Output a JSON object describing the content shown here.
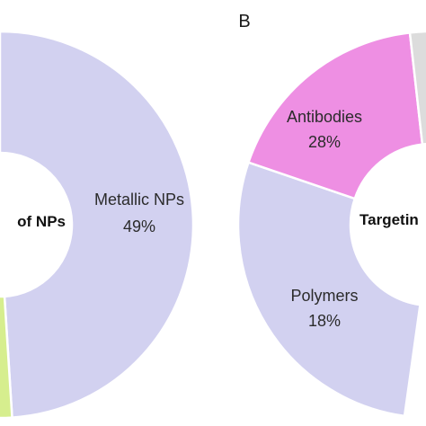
{
  "chart_data": [
    {
      "type": "pie",
      "panel": "",
      "center_label": "of NPs",
      "slices": [
        {
          "label": "Metallic NPs",
          "value": 49,
          "value_text": "49%",
          "color": "#d2d1f0"
        },
        {
          "label": "",
          "value": 2,
          "value_text": "",
          "color": "#d6ee8e"
        }
      ]
    },
    {
      "type": "pie",
      "panel": "B",
      "center_label": "Targetin",
      "slices": [
        {
          "label": "Antibodies",
          "value": 28,
          "value_text": "28%",
          "color": "#d2d1f0"
        },
        {
          "label": "Polymers",
          "value": 18,
          "value_text": "18%",
          "color": "#ee8fe3"
        },
        {
          "label": "",
          "value": 8,
          "value_text": "",
          "color": "#dcdcdc"
        }
      ]
    }
  ]
}
